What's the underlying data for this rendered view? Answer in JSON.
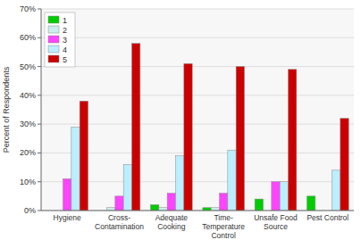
{
  "chart_data": {
    "type": "bar",
    "categories": [
      "Hygiene",
      "Cross-\nContamination",
      "Adequate\nCooking",
      "Time-\nTemperature\nControl",
      "Unsafe Food\nSource",
      "Pest Control"
    ],
    "series": [
      {
        "name": "1",
        "color": "#00cc00",
        "values": [
          0,
          0,
          2,
          1,
          4,
          5
        ]
      },
      {
        "name": "2",
        "color": "#cceeee",
        "values": [
          0,
          1,
          1,
          1,
          0,
          0
        ]
      },
      {
        "name": "3",
        "color": "#ff44ff",
        "values": [
          11,
          5,
          6,
          6,
          10,
          0
        ]
      },
      {
        "name": "4",
        "color": "#bbeeff",
        "values": [
          29,
          16,
          19,
          21,
          10,
          14
        ]
      },
      {
        "name": "5",
        "color": "#cc0000",
        "values": [
          38,
          58,
          51,
          50,
          49,
          32
        ]
      }
    ],
    "y_label": "Percent of Respondents",
    "ylim": [
      0,
      70
    ],
    "yticks": [
      {
        "value": 0,
        "label": "0%"
      },
      {
        "value": 10,
        "label": "10%"
      },
      {
        "value": 20,
        "label": "20%"
      },
      {
        "value": 30,
        "label": "30%"
      },
      {
        "value": 40,
        "label": "40%"
      },
      {
        "value": 50,
        "label": "50%"
      },
      {
        "value": 60,
        "label": "60%"
      },
      {
        "value": 70,
        "label": "70%"
      }
    ],
    "grid": true,
    "legend": "upper left"
  }
}
